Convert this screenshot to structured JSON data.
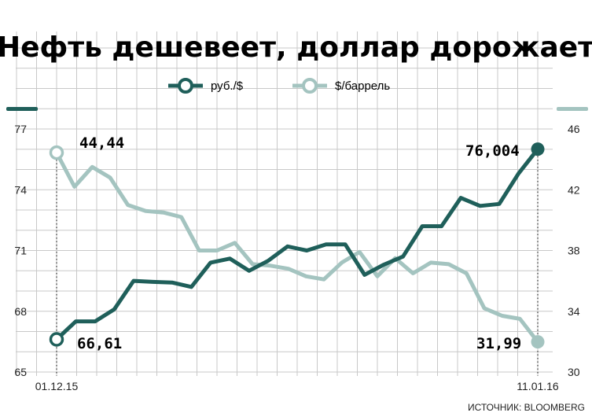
{
  "chart_data": {
    "type": "line",
    "title": "Нефть дешевеет, доллар дорожает",
    "source": "ИСТОЧНИК: BLOOMBERG",
    "colors": {
      "rub": "#1f5f5a",
      "oil": "#a4c4c0",
      "grid": "#c8c8c8"
    },
    "y_left": {
      "min": 65,
      "max": 77,
      "ticks": [
        "65",
        "68",
        "71",
        "74",
        "77"
      ]
    },
    "y_right": {
      "min": 30,
      "max": 46,
      "ticks": [
        "30",
        "34",
        "38",
        "42",
        "46"
      ]
    },
    "x_ticks": {
      "first": "01.12.15",
      "last": "11.01.16"
    },
    "series": [
      {
        "name": "руб./$",
        "axis": "left",
        "color": "#1f5f5a",
        "values": [
          66.61,
          67.5,
          67.5,
          68.1,
          69.5,
          69.45,
          69.42,
          69.2,
          70.4,
          70.6,
          70.0,
          70.5,
          71.2,
          71.0,
          71.3,
          71.3,
          69.8,
          70.3,
          70.7,
          72.2,
          72.2,
          73.6,
          73.2,
          73.3,
          74.8,
          76.004
        ],
        "start_label": "66,61",
        "end_label": "76,004"
      },
      {
        "name": "$/баррель",
        "axis": "right",
        "color": "#a4c4c0",
        "values": [
          44.44,
          42.2,
          43.5,
          42.8,
          41.0,
          40.6,
          40.5,
          40.2,
          38.0,
          38.0,
          38.5,
          37.1,
          37.0,
          36.8,
          36.3,
          36.1,
          37.2,
          37.9,
          36.3,
          37.5,
          36.5,
          37.2,
          37.1,
          36.5,
          34.2,
          33.7,
          33.5,
          31.99
        ],
        "start_label": "44,44",
        "end_label": "31,99"
      }
    ]
  }
}
